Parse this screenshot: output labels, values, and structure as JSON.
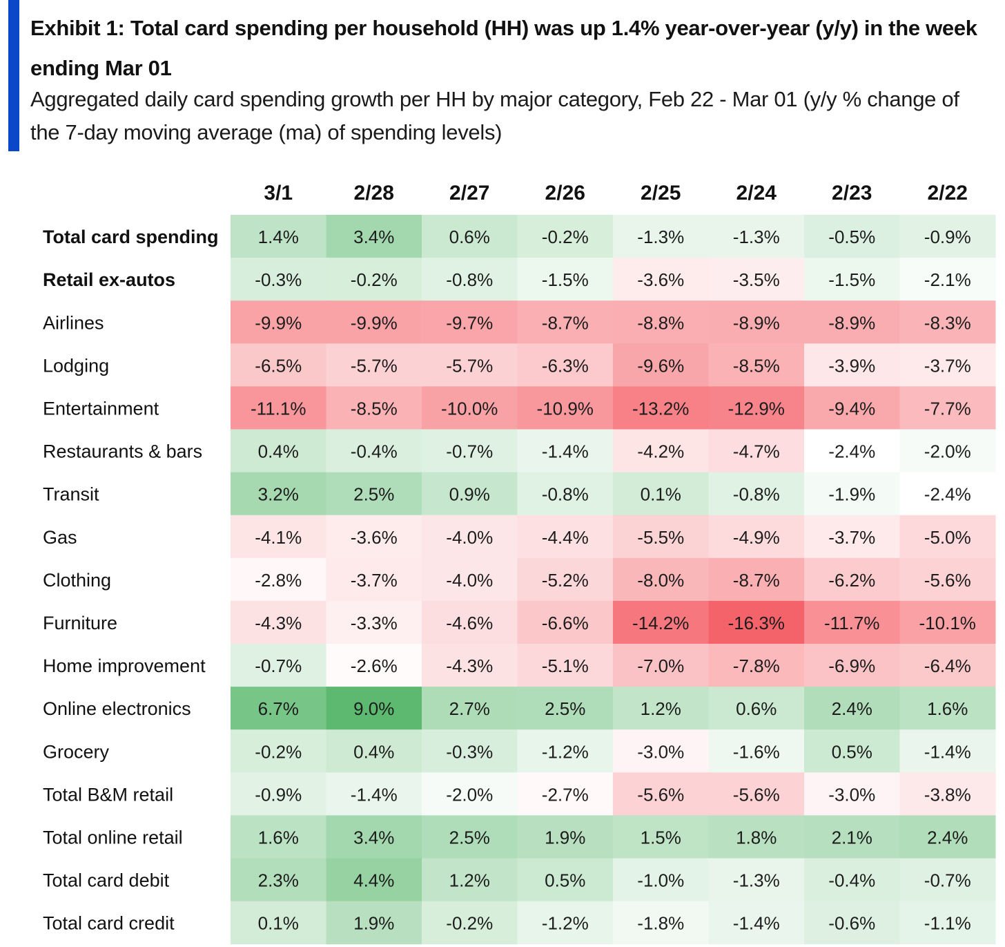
{
  "title": "Exhibit 1: Total card spending per household (HH) was up 1.4% year-over-year (y/y) in the week ending Mar 01",
  "subtitle": "Aggregated daily card spending growth per HH by major category, Feb 22 - Mar 01 (y/y % change of the 7-day moving average (ma) of spending levels)",
  "colors": {
    "accent_bar": "#0a47c9",
    "positive_max": "#5cb96f",
    "negative_max": "#f5636a",
    "neutral": "#ffffff"
  },
  "chart_data": {
    "type": "heatmap",
    "columns": [
      "3/1",
      "2/28",
      "2/27",
      "2/26",
      "2/25",
      "2/24",
      "2/23",
      "2/22"
    ],
    "rows": [
      {
        "label": "Total card spending",
        "bold": true,
        "values": [
          1.4,
          3.4,
          0.6,
          -0.2,
          -1.3,
          -1.3,
          -0.5,
          -0.9
        ]
      },
      {
        "label": "Retail ex-autos",
        "bold": true,
        "values": [
          -0.3,
          -0.2,
          -0.8,
          -1.5,
          -3.6,
          -3.5,
          -1.5,
          -2.1
        ]
      },
      {
        "label": "Airlines",
        "bold": false,
        "values": [
          -9.9,
          -9.9,
          -9.7,
          -8.7,
          -8.8,
          -8.9,
          -8.9,
          -8.3
        ]
      },
      {
        "label": "Lodging",
        "bold": false,
        "values": [
          -6.5,
          -5.7,
          -5.7,
          -6.3,
          -9.6,
          -8.5,
          -3.9,
          -3.7
        ]
      },
      {
        "label": "Entertainment",
        "bold": false,
        "values": [
          -11.1,
          -8.5,
          -10.0,
          -10.9,
          -13.2,
          -12.9,
          -9.4,
          -7.7
        ]
      },
      {
        "label": "Restaurants & bars",
        "bold": false,
        "values": [
          0.4,
          -0.4,
          -0.7,
          -1.4,
          -4.2,
          -4.7,
          -2.4,
          -2.0
        ]
      },
      {
        "label": "Transit",
        "bold": false,
        "values": [
          3.2,
          2.5,
          0.9,
          -0.8,
          0.1,
          -0.8,
          -1.9,
          -2.4
        ]
      },
      {
        "label": "Gas",
        "bold": false,
        "values": [
          -4.1,
          -3.6,
          -4.0,
          -4.4,
          -5.5,
          -4.9,
          -3.7,
          -5.0
        ]
      },
      {
        "label": "Clothing",
        "bold": false,
        "values": [
          -2.8,
          -3.7,
          -4.0,
          -5.2,
          -8.0,
          -8.7,
          -6.2,
          -5.6
        ]
      },
      {
        "label": "Furniture",
        "bold": false,
        "values": [
          -4.3,
          -3.3,
          -4.6,
          -6.6,
          -14.2,
          -16.3,
          -11.7,
          -10.1
        ]
      },
      {
        "label": "Home improvement",
        "bold": false,
        "values": [
          -0.7,
          -2.6,
          -4.3,
          -5.1,
          -7.0,
          -7.8,
          -6.9,
          -6.4
        ]
      },
      {
        "label": "Online electronics",
        "bold": false,
        "values": [
          6.7,
          9.0,
          2.7,
          2.5,
          1.2,
          0.6,
          2.4,
          1.6
        ]
      },
      {
        "label": "Grocery",
        "bold": false,
        "values": [
          -0.2,
          0.4,
          -0.3,
          -1.2,
          -3.0,
          -1.6,
          0.5,
          -1.4
        ]
      },
      {
        "label": "Total B&M retail",
        "bold": false,
        "values": [
          -0.9,
          -1.4,
          -2.0,
          -2.7,
          -5.6,
          -5.6,
          -3.0,
          -3.8
        ]
      },
      {
        "label": "Total online retail",
        "bold": false,
        "values": [
          1.6,
          3.4,
          2.5,
          1.9,
          1.5,
          1.8,
          2.1,
          2.4
        ]
      },
      {
        "label": "Total card debit",
        "bold": false,
        "values": [
          2.3,
          4.4,
          1.2,
          0.5,
          -1.0,
          -1.3,
          -0.4,
          -0.7
        ]
      },
      {
        "label": "Total card credit",
        "bold": false,
        "values": [
          0.1,
          1.9,
          -0.2,
          -1.2,
          -1.8,
          -1.4,
          -0.6,
          -1.1
        ]
      }
    ],
    "value_format": "percent_1dp"
  }
}
